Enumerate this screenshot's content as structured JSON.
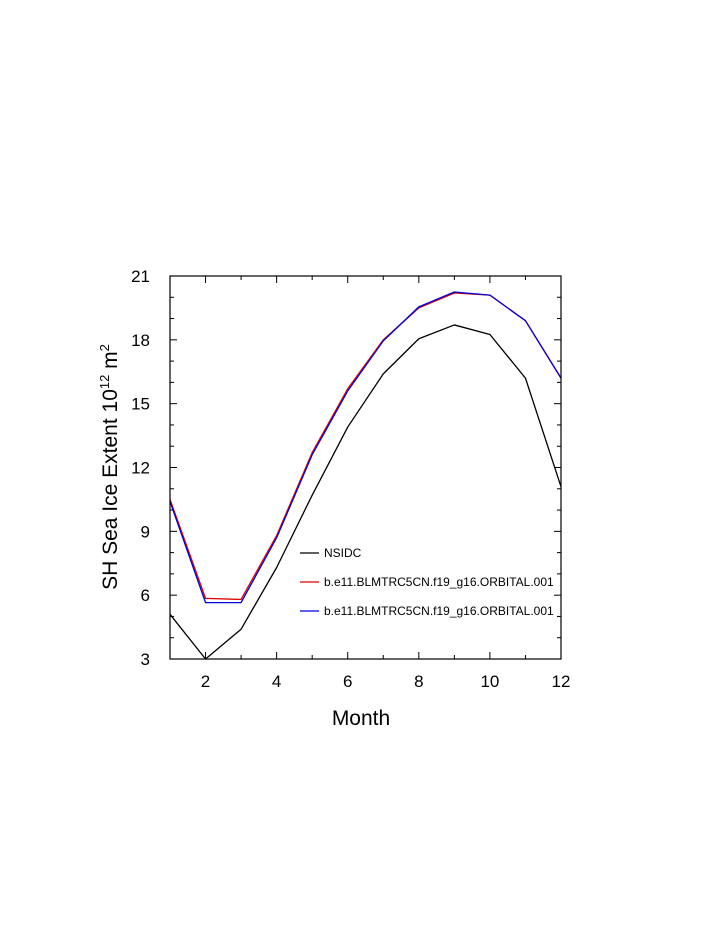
{
  "chart_data": {
    "type": "line",
    "title": "",
    "xlabel": "Month",
    "ylabel": {
      "prefix": "SH Sea Ice Extent 10",
      "exponent1": "12",
      "middle": " m",
      "exponent2": "2"
    },
    "xlim": [
      1,
      12
    ],
    "ylim": [
      3,
      21
    ],
    "xticks": [
      2,
      4,
      6,
      8,
      10,
      12
    ],
    "yticks": [
      3,
      6,
      9,
      12,
      15,
      18,
      21
    ],
    "grid": false,
    "legend_position": "center-right",
    "x": [
      1,
      2,
      3,
      4,
      5,
      6,
      7,
      8,
      9,
      10,
      11,
      12
    ],
    "series": [
      {
        "name": "NSIDC",
        "color": "#000000",
        "values": [
          5.1,
          3.0,
          4.4,
          7.3,
          10.7,
          13.9,
          16.4,
          18.05,
          18.7,
          18.25,
          16.2,
          11.1
        ]
      },
      {
        "name": "b.e11.BLMTRC5CN.f19_g16.ORBITAL.001",
        "color": "#dd0000",
        "values": [
          10.5,
          5.85,
          5.8,
          8.8,
          12.7,
          15.7,
          18.0,
          19.5,
          20.2,
          20.1,
          18.9,
          16.2
        ]
      },
      {
        "name": "b.e11.BLMTRC5CN.f19_g16.ORBITAL.001",
        "color": "#0000dd",
        "values": [
          10.4,
          5.65,
          5.65,
          8.7,
          12.6,
          15.6,
          17.95,
          19.55,
          20.25,
          20.1,
          18.9,
          16.2
        ]
      }
    ]
  }
}
